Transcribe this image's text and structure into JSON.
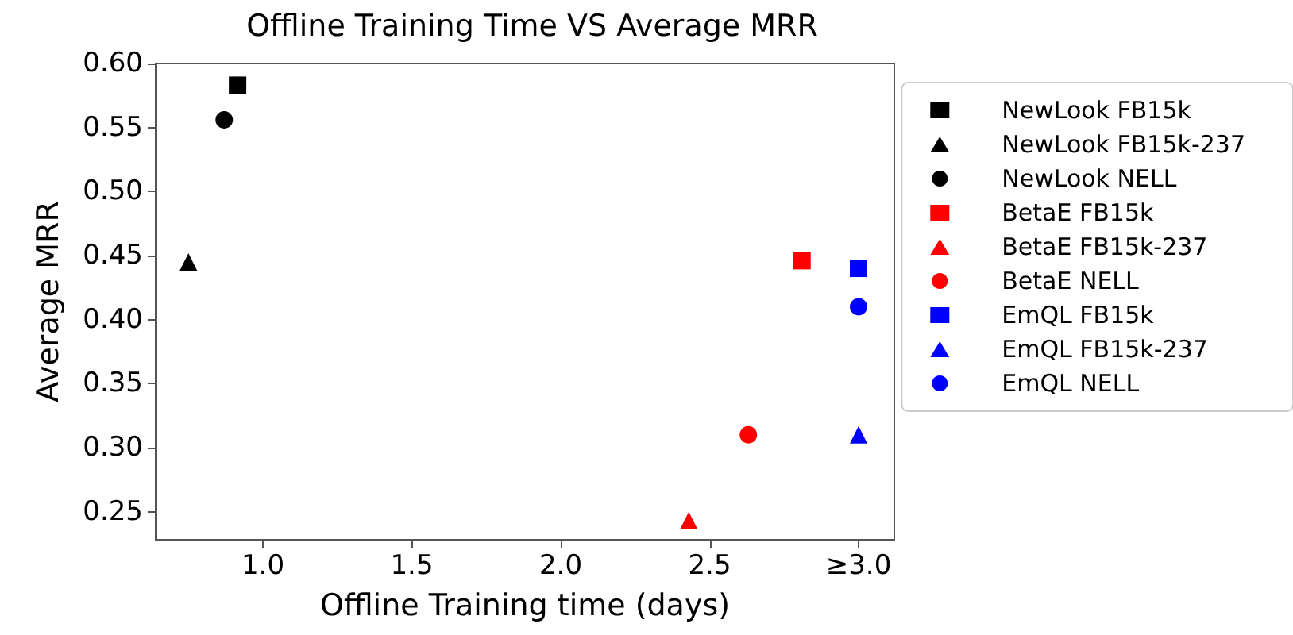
{
  "chart_data": {
    "type": "scatter",
    "title": "Offline Training Time VS Average MRR",
    "xlabel": "Offline Training time (days)",
    "ylabel": "Average MRR",
    "xlim": [
      0.64,
      3.12
    ],
    "xticks": [
      {
        "value": 1,
        "label": "1.0"
      },
      1.5,
      {
        "value": 2,
        "label": "2.0"
      },
      2.5,
      {
        "value": 3.0,
        "label": "≥3.0"
      }
    ],
    "ylim": [
      0.228,
      0.6
    ],
    "yticks": [
      0.25,
      {
        "value": 0.3,
        "label": "0.30"
      },
      0.35,
      {
        "value": 0.4,
        "label": "0.40"
      },
      0.45,
      {
        "value": 0.5,
        "label": "0.50"
      },
      0.55,
      {
        "value": 0.6,
        "label": "0.60"
      }
    ],
    "grid": false,
    "legend": "right",
    "series": [
      {
        "name": "NewLook FB15k",
        "color": "#000000",
        "marker": "square",
        "x": [
          0.915
        ],
        "values": [
          0.583
        ]
      },
      {
        "name": "NewLook FB15k-237",
        "color": "#000000",
        "marker": "triangle",
        "x": [
          0.75
        ],
        "values": [
          0.445
        ]
      },
      {
        "name": "NewLook NELL",
        "color": "#000000",
        "marker": "circle",
        "x": [
          0.87
        ],
        "values": [
          0.556
        ]
      },
      {
        "name": "BetaE FB15k",
        "color": "#ff0000",
        "marker": "square",
        "x": [
          2.81
        ],
        "values": [
          0.446
        ]
      },
      {
        "name": "BetaE FB15k-237",
        "color": "#ff0000",
        "marker": "triangle",
        "x": [
          2.43
        ],
        "values": [
          0.243
        ]
      },
      {
        "name": "BetaE NELL",
        "color": "#ff0000",
        "marker": "circle",
        "x": [
          2.63
        ],
        "values": [
          0.31
        ]
      },
      {
        "name": "EmQL FB15k",
        "color": "#0000ff",
        "marker": "square",
        "x": [
          3.0
        ],
        "values": [
          0.44
        ]
      },
      {
        "name": "EmQL FB15k-237",
        "color": "#0000ff",
        "marker": "triangle",
        "x": [
          3.0
        ],
        "values": [
          0.31
        ]
      },
      {
        "name": "EmQL NELL",
        "color": "#0000ff",
        "marker": "circle",
        "x": [
          3.0
        ],
        "values": [
          0.41
        ]
      }
    ]
  }
}
